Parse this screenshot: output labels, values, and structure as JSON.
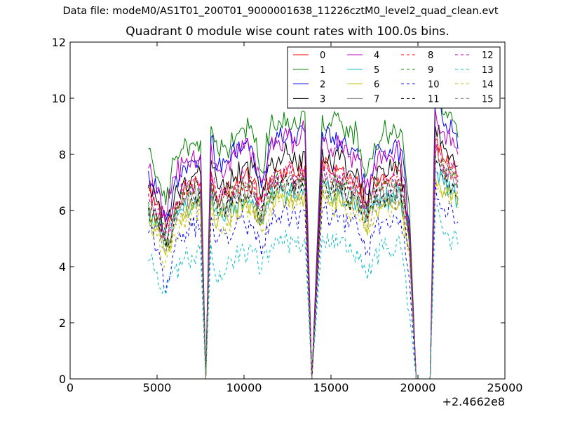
{
  "figure": {
    "suptitle": "Data file: modeM0/AS1T01_200T01_9000001638_11226cztM0_level2_quad_clean.evt"
  },
  "chart_data": {
    "type": "line",
    "title": "Quadrant 0 module wise count rates with 100.0s bins.",
    "xlabel": "",
    "ylabel": "",
    "x_offset_label": "+2.4662e8",
    "xlim": [
      0,
      25000
    ],
    "ylim": [
      0,
      12
    ],
    "xticks": [
      0,
      5000,
      10000,
      15000,
      20000,
      25000
    ],
    "yticks": [
      0,
      2,
      4,
      6,
      8,
      10,
      12
    ],
    "grid": false,
    "legend": {
      "placement": "top-right",
      "columns": 4
    },
    "x": [
      4500,
      5000,
      5500,
      6000,
      6500,
      7000,
      7500,
      7800,
      8100,
      8500,
      9000,
      9500,
      10000,
      10500,
      11000,
      11500,
      12000,
      12500,
      13000,
      13500,
      13900,
      14500,
      15000,
      15500,
      16000,
      16500,
      17000,
      17500,
      18000,
      18500,
      19000,
      19500,
      19900,
      20700,
      21000,
      21500,
      22000,
      22300
    ],
    "gap_ranges": [
      [
        7800,
        8100
      ],
      [
        13900,
        14500
      ],
      [
        19900,
        20700
      ]
    ],
    "series": [
      {
        "name": "0",
        "color": "#ff0000",
        "dash": "solid",
        "values": [
          6.8,
          6.2,
          5.4,
          6.0,
          6.6,
          6.9,
          7.0,
          0,
          7.4,
          6.4,
          6.6,
          6.9,
          7.2,
          7.0,
          6.3,
          7.2,
          7.4,
          7.5,
          7.2,
          7.6,
          0,
          7.8,
          7.3,
          7.5,
          7.1,
          7.2,
          6.2,
          7.0,
          7.3,
          7.2,
          7.4,
          5.2,
          0,
          0,
          8.5,
          7.8,
          7.6,
          7.2
        ]
      },
      {
        "name": "1",
        "color": "#008000",
        "dash": "solid",
        "values": [
          8.2,
          7.2,
          6.2,
          7.8,
          8.2,
          8.4,
          8.5,
          0,
          9.0,
          8.1,
          8.2,
          8.6,
          8.9,
          8.8,
          7.4,
          9.0,
          9.2,
          9.3,
          9.0,
          9.5,
          0,
          9.4,
          9.0,
          9.2,
          8.6,
          8.8,
          7.2,
          8.4,
          8.8,
          8.7,
          8.9,
          6.2,
          0,
          0,
          10.6,
          9.4,
          9.2,
          8.6
        ]
      },
      {
        "name": "2",
        "color": "#0000ff",
        "dash": "solid",
        "values": [
          7.4,
          6.6,
          5.6,
          7.0,
          7.6,
          7.8,
          7.9,
          0,
          8.6,
          7.6,
          7.8,
          8.0,
          8.4,
          8.2,
          6.8,
          8.4,
          8.6,
          8.6,
          8.4,
          8.8,
          0,
          8.8,
          8.4,
          8.5,
          8.0,
          8.2,
          6.6,
          7.8,
          8.1,
          8.0,
          8.2,
          5.6,
          0,
          0,
          10.0,
          9.0,
          8.8,
          8.2
        ]
      },
      {
        "name": "3",
        "color": "#000000",
        "dash": "solid",
        "values": [
          6.9,
          6.3,
          5.3,
          6.5,
          7.0,
          7.2,
          7.3,
          0,
          7.8,
          6.8,
          7.0,
          7.2,
          7.6,
          7.5,
          6.4,
          7.6,
          7.9,
          8.0,
          7.7,
          8.1,
          0,
          8.2,
          7.6,
          7.8,
          7.4,
          7.5,
          6.3,
          7.2,
          7.5,
          7.4,
          7.6,
          5.1,
          0,
          0,
          9.0,
          8.2,
          8.0,
          7.6
        ]
      },
      {
        "name": "4",
        "color": "#bf00bf",
        "dash": "solid",
        "values": [
          7.5,
          6.8,
          5.8,
          7.2,
          7.7,
          7.9,
          8.0,
          0,
          8.4,
          7.4,
          7.6,
          7.9,
          8.2,
          8.1,
          7.0,
          8.2,
          8.5,
          8.6,
          8.3,
          8.9,
          0,
          8.6,
          8.2,
          8.3,
          7.9,
          8.0,
          6.8,
          7.7,
          8.0,
          7.9,
          8.1,
          5.5,
          0,
          0,
          9.6,
          8.8,
          8.6,
          8.0
        ]
      },
      {
        "name": "5",
        "color": "#00bfbf",
        "dash": "solid",
        "values": [
          6.0,
          5.6,
          4.8,
          5.6,
          6.0,
          6.2,
          6.3,
          0,
          6.6,
          5.8,
          6.0,
          6.2,
          6.4,
          6.4,
          5.7,
          6.5,
          6.6,
          6.7,
          6.5,
          6.8,
          0,
          6.9,
          6.5,
          6.6,
          6.3,
          6.4,
          5.6,
          6.2,
          6.4,
          6.3,
          6.5,
          4.8,
          0,
          0,
          7.4,
          6.9,
          6.8,
          6.4
        ]
      },
      {
        "name": "6",
        "color": "#bfbf00",
        "dash": "solid",
        "values": [
          5.8,
          5.3,
          4.4,
          5.4,
          5.9,
          6.0,
          6.1,
          0,
          6.4,
          5.6,
          5.8,
          6.0,
          6.2,
          6.2,
          5.5,
          6.3,
          6.4,
          6.5,
          6.3,
          6.6,
          0,
          6.7,
          6.3,
          6.4,
          6.1,
          6.2,
          5.4,
          6.0,
          6.2,
          6.1,
          6.3,
          4.6,
          0,
          0,
          7.2,
          6.7,
          6.6,
          6.2
        ]
      },
      {
        "name": "7",
        "color": "#808080",
        "dash": "solid",
        "values": [
          6.2,
          5.7,
          4.7,
          5.8,
          6.3,
          6.5,
          6.6,
          0,
          7.0,
          6.1,
          6.3,
          6.5,
          6.8,
          6.7,
          5.8,
          6.8,
          7.0,
          7.1,
          6.9,
          7.2,
          0,
          7.3,
          6.8,
          7.0,
          6.6,
          6.7,
          5.7,
          6.5,
          6.7,
          6.6,
          6.8,
          4.9,
          0,
          0,
          8.0,
          7.3,
          7.2,
          6.8
        ]
      },
      {
        "name": "8",
        "color": "#ff0000",
        "dash": "dashed",
        "values": [
          6.5,
          5.9,
          5.0,
          6.1,
          6.6,
          6.8,
          6.9,
          0,
          7.2,
          6.3,
          6.5,
          6.8,
          7.0,
          6.9,
          6.0,
          7.0,
          7.2,
          7.3,
          7.1,
          7.4,
          0,
          7.5,
          7.0,
          7.2,
          6.8,
          6.9,
          5.9,
          6.7,
          7.0,
          6.9,
          7.1,
          5.0,
          0,
          0,
          8.2,
          7.5,
          7.4,
          7.0
        ]
      },
      {
        "name": "9",
        "color": "#008000",
        "dash": "dashed",
        "values": [
          6.3,
          5.8,
          4.9,
          5.9,
          6.4,
          6.6,
          6.7,
          0,
          7.0,
          6.1,
          6.3,
          6.6,
          6.8,
          6.7,
          5.8,
          6.8,
          7.0,
          7.1,
          6.9,
          7.2,
          0,
          7.3,
          6.8,
          7.0,
          6.6,
          6.7,
          5.8,
          6.5,
          6.8,
          6.7,
          6.9,
          4.9,
          0,
          0,
          8.0,
          7.3,
          7.2,
          6.8
        ]
      },
      {
        "name": "10",
        "color": "#0000ff",
        "dash": "dashed",
        "values": [
          5.2,
          4.6,
          3.1,
          4.6,
          5.2,
          5.4,
          5.5,
          0,
          5.8,
          5.0,
          5.2,
          5.4,
          5.6,
          5.5,
          4.4,
          5.6,
          5.8,
          5.9,
          5.7,
          6.0,
          0,
          6.1,
          5.6,
          5.8,
          5.4,
          5.5,
          4.4,
          5.3,
          5.6,
          5.5,
          5.7,
          3.6,
          0,
          0,
          7.0,
          6.1,
          6.0,
          5.6
        ]
      },
      {
        "name": "11",
        "color": "#000000",
        "dash": "dashed",
        "values": [
          6.1,
          5.6,
          4.7,
          5.7,
          6.2,
          6.4,
          6.5,
          0,
          6.8,
          5.9,
          6.1,
          6.4,
          6.6,
          6.5,
          5.7,
          6.6,
          6.8,
          6.9,
          6.7,
          7.0,
          0,
          7.1,
          6.6,
          6.8,
          6.4,
          6.5,
          5.6,
          6.3,
          6.6,
          6.5,
          6.7,
          4.7,
          0,
          0,
          7.8,
          7.1,
          7.0,
          6.6
        ]
      },
      {
        "name": "12",
        "color": "#bf00bf",
        "dash": "dashed",
        "values": [
          6.6,
          6.0,
          5.1,
          6.2,
          6.7,
          6.9,
          7.0,
          0,
          7.3,
          6.4,
          6.6,
          6.9,
          7.1,
          7.0,
          6.1,
          7.1,
          7.3,
          7.4,
          7.2,
          7.5,
          0,
          7.6,
          7.1,
          7.3,
          6.9,
          7.0,
          6.0,
          6.8,
          7.1,
          7.0,
          7.2,
          5.1,
          0,
          0,
          8.3,
          7.6,
          7.5,
          7.1
        ]
      },
      {
        "name": "13",
        "color": "#00bfbf",
        "dash": "dashed",
        "values": [
          4.2,
          3.8,
          3.0,
          3.9,
          4.2,
          4.4,
          4.5,
          0,
          4.8,
          3.4,
          4.0,
          4.3,
          4.6,
          4.5,
          3.9,
          4.6,
          4.8,
          4.9,
          4.7,
          5.0,
          0,
          5.1,
          4.7,
          4.8,
          4.5,
          4.6,
          3.8,
          4.4,
          4.6,
          4.5,
          4.7,
          2.4,
          0,
          0,
          6.0,
          5.1,
          5.0,
          4.8
        ]
      },
      {
        "name": "14",
        "color": "#bfbf00",
        "dash": "dashed",
        "values": [
          5.6,
          5.1,
          4.2,
          5.2,
          5.7,
          5.9,
          6.0,
          0,
          6.3,
          5.4,
          5.6,
          5.9,
          6.1,
          6.0,
          5.2,
          6.1,
          6.3,
          6.4,
          6.2,
          6.5,
          0,
          6.6,
          6.1,
          6.3,
          5.9,
          6.0,
          5.2,
          5.8,
          6.1,
          6.0,
          6.2,
          4.4,
          0,
          0,
          7.2,
          6.6,
          6.5,
          6.1
        ]
      },
      {
        "name": "15",
        "color": "#808080",
        "dash": "dashed",
        "values": [
          5.9,
          5.4,
          4.5,
          5.5,
          6.0,
          6.2,
          6.3,
          0,
          6.6,
          5.7,
          5.9,
          6.2,
          6.4,
          6.3,
          5.5,
          6.4,
          6.6,
          6.7,
          6.5,
          6.8,
          0,
          6.9,
          6.4,
          6.6,
          6.2,
          6.3,
          5.5,
          6.1,
          6.4,
          6.3,
          6.5,
          4.6,
          0,
          0,
          7.5,
          6.9,
          6.8,
          6.4
        ]
      }
    ]
  }
}
